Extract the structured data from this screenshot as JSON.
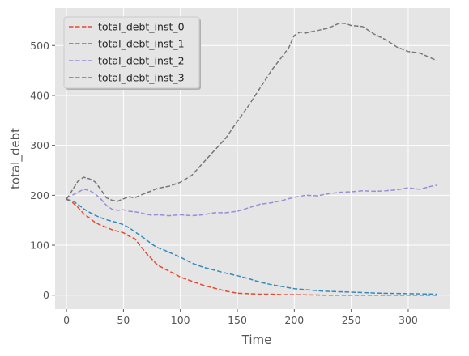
{
  "chart_data": {
    "type": "line",
    "title": "",
    "xlabel": "Time",
    "ylabel": "total_debt",
    "xlim": [
      -10,
      337
    ],
    "ylim": [
      -28,
      575
    ],
    "xticks": [
      0,
      50,
      100,
      150,
      200,
      250,
      300
    ],
    "yticks": [
      0,
      100,
      200,
      300,
      400,
      500
    ],
    "grid": true,
    "legend": "top-left",
    "line_style": "dashed",
    "background": "#e5e5e5",
    "series": [
      {
        "name": "total_debt_inst_0",
        "color": "#e24a33",
        "x": [
          0,
          5,
          10,
          15,
          20,
          25,
          30,
          35,
          40,
          45,
          50,
          55,
          60,
          65,
          70,
          75,
          80,
          85,
          90,
          95,
          100,
          110,
          120,
          130,
          140,
          150,
          160,
          170,
          180,
          190,
          200,
          225,
          250,
          275,
          300,
          325
        ],
        "y": [
          192,
          186,
          176,
          163,
          155,
          146,
          140,
          136,
          131,
          128,
          125,
          118,
          113,
          98,
          84,
          72,
          60,
          54,
          48,
          43,
          36,
          28,
          20,
          14,
          8,
          4,
          3,
          2,
          2,
          1,
          1,
          0,
          0,
          0,
          0,
          0
        ]
      },
      {
        "name": "total_debt_inst_1",
        "color": "#348abd",
        "x": [
          0,
          5,
          10,
          15,
          20,
          25,
          30,
          35,
          40,
          45,
          50,
          55,
          60,
          65,
          70,
          75,
          80,
          85,
          90,
          95,
          100,
          110,
          120,
          130,
          140,
          150,
          160,
          170,
          180,
          190,
          200,
          225,
          250,
          275,
          300,
          325
        ],
        "y": [
          192,
          189,
          182,
          173,
          166,
          160,
          155,
          151,
          148,
          145,
          141,
          135,
          127,
          119,
          111,
          102,
          95,
          91,
          86,
          81,
          76,
          64,
          56,
          50,
          44,
          39,
          33,
          26,
          21,
          17,
          13,
          8,
          6,
          4,
          3,
          2
        ]
      },
      {
        "name": "total_debt_inst_2",
        "color": "#988ed5",
        "x": [
          0,
          5,
          10,
          15,
          20,
          25,
          30,
          35,
          40,
          45,
          50,
          55,
          60,
          65,
          70,
          75,
          80,
          90,
          100,
          110,
          120,
          130,
          140,
          150,
          160,
          170,
          180,
          190,
          200,
          210,
          220,
          230,
          240,
          250,
          260,
          270,
          280,
          290,
          300,
          310,
          320,
          325
        ],
        "y": [
          195,
          200,
          206,
          212,
          210,
          203,
          193,
          180,
          172,
          170,
          171,
          168,
          167,
          165,
          162,
          160,
          161,
          159,
          161,
          159,
          161,
          165,
          165,
          168,
          175,
          182,
          185,
          190,
          196,
          200,
          199,
          203,
          206,
          207,
          209,
          208,
          209,
          211,
          215,
          212,
          218,
          220
        ]
      },
      {
        "name": "total_debt_inst_3",
        "color": "#777777",
        "x": [
          0,
          5,
          10,
          15,
          20,
          25,
          30,
          35,
          40,
          45,
          50,
          55,
          60,
          65,
          70,
          75,
          80,
          90,
          100,
          110,
          120,
          130,
          140,
          150,
          160,
          170,
          180,
          190,
          195,
          200,
          205,
          210,
          220,
          230,
          240,
          245,
          250,
          260,
          270,
          280,
          290,
          300,
          310,
          320,
          325
        ],
        "y": [
          192,
          210,
          228,
          236,
          233,
          227,
          212,
          195,
          190,
          188,
          193,
          197,
          195,
          200,
          205,
          209,
          214,
          218,
          226,
          240,
          265,
          290,
          315,
          348,
          380,
          415,
          450,
          480,
          495,
          520,
          527,
          525,
          530,
          535,
          545,
          544,
          540,
          538,
          523,
          512,
          497,
          488,
          485,
          475,
          470
        ]
      }
    ]
  }
}
